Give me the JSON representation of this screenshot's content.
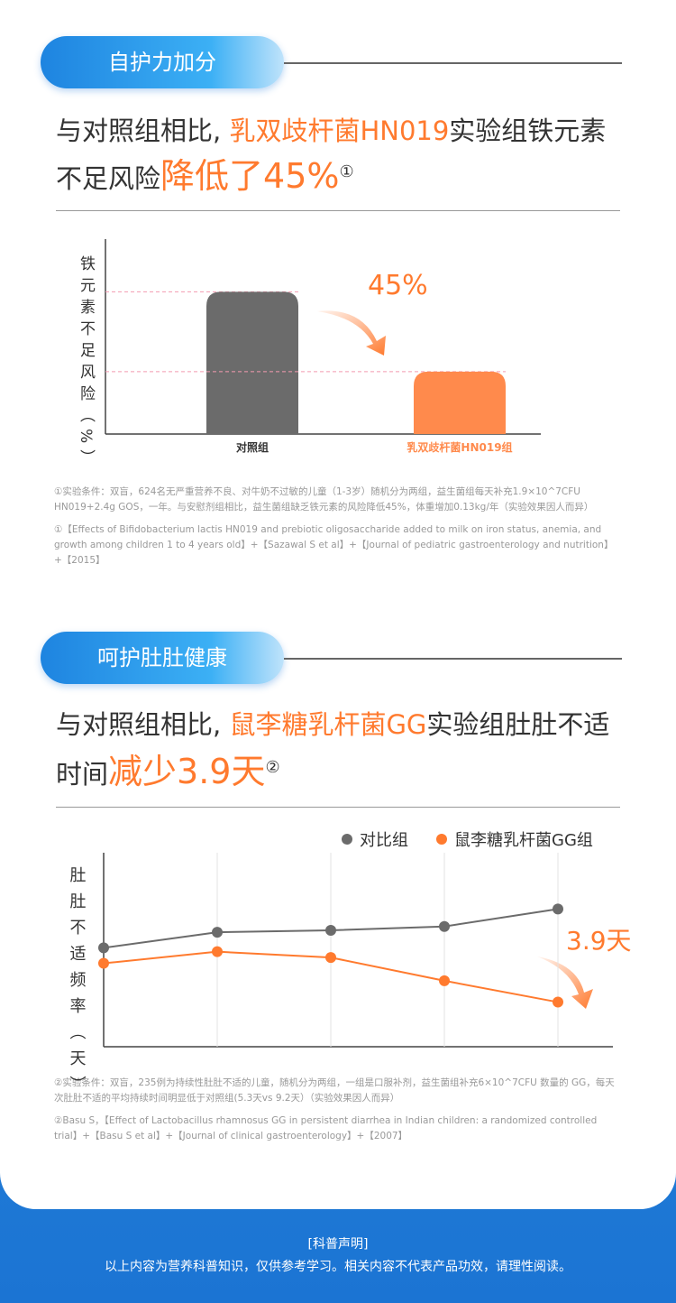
{
  "sections": [
    {
      "heading": "自护力加分",
      "headline_lines": [
        [
          "与对照组相比, ",
          "乳双歧杆菌HN019",
          "实验组铁元素"
        ],
        [
          "不足风险",
          "降低了45%",
          "①"
        ]
      ],
      "footnotes": [
        "①实验条件：双盲，624名无严重营养不良、对牛奶不过敏的儿童（1-3岁）随机分为两组，益生菌组每天补充1.9×10^7CFU HN019+2.4g GOS，一年。与安慰剂组相比，益生菌组缺乏铁元素的风险降低45%，体重增加0.13kg/年（实验效果因人而异）",
        "①【Effects of Bifidobacterium lactis HN019 and prebiotic oligosaccharide added to milk on iron status, anemia, and growth among children 1 to 4 years old】+【Sazawal S et al】+【Journal of pediatric gastroenterology and nutrition】+【2015】"
      ]
    },
    {
      "heading": "呵护肚肚健康",
      "headline_lines": [
        [
          "与对照组相比, ",
          "鼠李糖乳杆菌GG",
          "实验组肚肚不适"
        ],
        [
          "时间",
          "减少3.9天",
          "②"
        ]
      ],
      "footnotes": [
        "②实验条件：双盲，235例为持续性肚肚不适的儿童，随机分为两组，一组是口服补剂，益生菌组补充6×10^7CFU 数量的 GG，每天次肚肚不适的平均持续时间明显低于对照组(5.3天vs 9.2天）（实验效果因人而异）",
        "②Basu S，【Effect of Lactobacillus rhamnosus GG in persistent diarrhea in Indian children: a randomized controlled trial】+【Basu S et al】+【Journal of clinical gastroenterology】+【2007】"
      ]
    }
  ],
  "chart_data": [
    {
      "type": "bar",
      "y_label": "铁元素不足风险（%）",
      "categories": [
        "对照组",
        "乳双歧杆菌HN019组"
      ],
      "values": [
        73,
        32
      ],
      "colors": [
        "#6b6b6b",
        "#ff8a4c"
      ],
      "ylim": [
        0,
        100
      ],
      "annotation": "45%"
    },
    {
      "type": "line",
      "y_label": "肚肚不适频率（天）",
      "categories": [
        null,
        null,
        null,
        null,
        null
      ],
      "series": [
        {
          "name": "对比组",
          "color": "#6b6b6b",
          "values": [
            51,
            59,
            60,
            62,
            71
          ]
        },
        {
          "name": "鼠李糖乳杆菌GG组",
          "color": "#ff7a2e",
          "values": [
            43,
            49,
            46,
            34,
            23
          ]
        }
      ],
      "ylim": [
        0,
        100
      ],
      "annotation": "3.9天"
    }
  ],
  "footer": {
    "title": "[科普声明]",
    "text": "以上内容为营养科普知识，仅供参考学习。相关内容不代表产品功效，请理性阅读。"
  }
}
